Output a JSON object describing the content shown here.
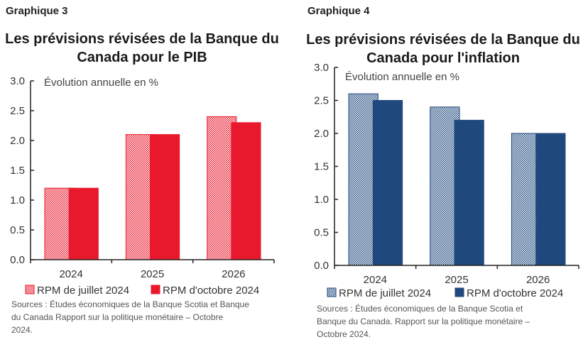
{
  "colors": {
    "gdp": "#e8192c",
    "inflation": "#1f497d",
    "axis": "#222222"
  },
  "chart_data": [
    {
      "label": "Graphique 3",
      "type": "bar",
      "title": "Les prévisions révisées de la Banque du Canada pour le PIB",
      "title_lines": [
        "Les prévisions révisées de la Banque du",
        "Canada pour le PIB"
      ],
      "ylabel": "Évolution annuelle en %",
      "ylim": [
        0,
        3.0
      ],
      "yticks": [
        "0.0",
        "0.5",
        "1.0",
        "1.5",
        "2.0",
        "2.5",
        "3.0"
      ],
      "categories": [
        "2024",
        "2025",
        "2026"
      ],
      "series": [
        {
          "name": "RPM de juillet 2024",
          "values": [
            1.2,
            2.1,
            2.4
          ],
          "style": "hatched"
        },
        {
          "name": "RPM d'octobre 2024",
          "values": [
            1.2,
            2.1,
            2.3
          ],
          "style": "solid"
        }
      ],
      "legend": "bottom",
      "grid": false,
      "source_lines": [
        "Sources : Études économiques de la Banque Scotia et Banque",
        "du Canada Rapport sur la politique monétaire  – Octobre",
        "2024."
      ]
    },
    {
      "label": "Graphique 4",
      "type": "bar",
      "title": "Les prévisions révisées de la Banque du Canada pour l'inflation",
      "title_lines": [
        "Les prévisions révisées de la Banque du",
        "Canada pour l'inflation"
      ],
      "ylabel": "Évolution annuelle en %",
      "ylim": [
        0,
        3.0
      ],
      "yticks": [
        "0.0",
        "0.5",
        "1.0",
        "1.5",
        "2.0",
        "2.5",
        "3.0"
      ],
      "categories": [
        "2024",
        "2025",
        "2026"
      ],
      "series": [
        {
          "name": "RPM de juillet 2024",
          "values": [
            2.6,
            2.4,
            2.0
          ],
          "style": "hatched"
        },
        {
          "name": "RPM d'octobre 2024",
          "values": [
            2.5,
            2.2,
            2.0
          ],
          "style": "solid"
        }
      ],
      "legend": "bottom",
      "grid": false,
      "source_lines": [
        "Sources : Études économiques de la Banque Scotia et",
        "Banque du Canada. Rapport sur la politique monétaire –",
        "Octobre 2024."
      ]
    }
  ]
}
